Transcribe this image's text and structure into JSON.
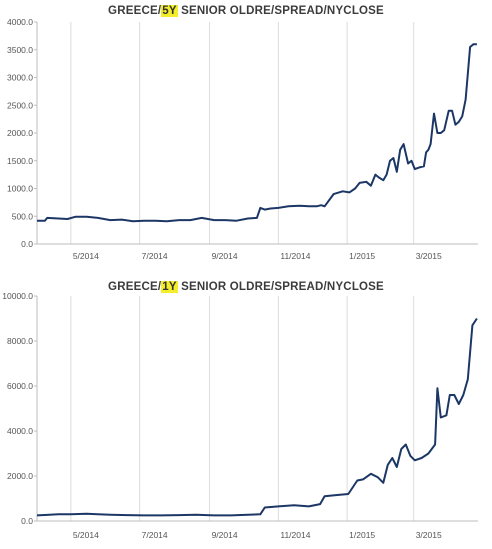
{
  "chart_data": [
    {
      "type": "line",
      "title": {
        "pre": "GREECE/",
        "highlight": "5Y",
        "post": " SENIOR OLDRE/SPREAD/NYCLOSE"
      },
      "x_tick_labels": [
        "5/2014",
        "7/2014",
        "9/2014",
        "11/2014",
        "1/2015",
        "3/2015"
      ],
      "y_ticks": [
        0,
        500,
        1000,
        1500,
        2000,
        2500,
        3000,
        3500,
        4000
      ],
      "y_tick_labels": [
        "0.0",
        "500.0",
        "1000.0",
        "1500.0",
        "2000.0",
        "2500.0",
        "3000.0",
        "3500.0",
        "4000.0"
      ],
      "ylim": [
        0,
        4000
      ],
      "grid": "vertical",
      "line_color": "#1c3766",
      "series": [
        {
          "x": [
            "2014-04-01",
            "2014-04-08",
            "2014-04-10",
            "2014-04-20",
            "2014-04-28",
            "2014-05-05",
            "2014-05-15",
            "2014-05-25",
            "2014-06-05",
            "2014-06-15",
            "2014-06-25",
            "2014-07-05",
            "2014-07-15",
            "2014-07-25",
            "2014-08-05",
            "2014-08-15",
            "2014-08-25",
            "2014-09-05",
            "2014-09-15",
            "2014-09-25",
            "2014-10-05",
            "2014-10-13",
            "2014-10-16",
            "2014-10-20",
            "2014-10-25",
            "2014-11-01",
            "2014-11-10",
            "2014-11-20",
            "2014-11-28",
            "2014-12-05",
            "2014-12-09",
            "2014-12-12",
            "2014-12-20",
            "2014-12-28",
            "2015-01-03",
            "2015-01-08",
            "2015-01-12",
            "2015-01-18",
            "2015-01-22",
            "2015-01-26",
            "2015-01-29",
            "2015-02-02",
            "2015-02-05",
            "2015-02-08",
            "2015-02-11",
            "2015-02-14",
            "2015-02-17",
            "2015-02-20",
            "2015-02-24",
            "2015-02-27",
            "2015-03-02",
            "2015-03-06",
            "2015-03-10",
            "2015-03-12",
            "2015-03-14",
            "2015-03-16",
            "2015-03-19",
            "2015-03-22",
            "2015-03-25",
            "2015-03-28",
            "2015-04-01",
            "2015-04-04",
            "2015-04-07",
            "2015-04-10",
            "2015-04-13",
            "2015-04-16",
            "2015-04-20",
            "2015-04-23",
            "2015-04-26"
          ],
          "y": [
            420,
            420,
            470,
            460,
            450,
            490,
            490,
            470,
            430,
            440,
            410,
            420,
            420,
            410,
            430,
            430,
            470,
            430,
            430,
            420,
            460,
            470,
            650,
            620,
            640,
            650,
            680,
            690,
            680,
            680,
            700,
            680,
            900,
            950,
            930,
            1000,
            1100,
            1120,
            1050,
            1250,
            1200,
            1150,
            1250,
            1500,
            1550,
            1300,
            1700,
            1800,
            1450,
            1500,
            1350,
            1380,
            1400,
            1650,
            1700,
            1800,
            2350,
            2000,
            2000,
            2050,
            2400,
            2400,
            2150,
            2200,
            2300,
            2600,
            3550,
            3600,
            3600
          ]
        }
      ]
    },
    {
      "type": "line",
      "title": {
        "pre": "GREECE/",
        "highlight": "1Y",
        "post": " SENIOR OLDRE/SPREAD/NYCLOSE"
      },
      "x_tick_labels": [
        "5/2014",
        "7/2014",
        "9/2014",
        "11/2014",
        "1/2015",
        "3/2015"
      ],
      "y_ticks": [
        0,
        2000,
        4000,
        6000,
        8000,
        10000
      ],
      "y_tick_labels": [
        "0.0",
        "2000.0",
        "4000.0",
        "6000.0",
        "8000.0",
        "10000.0"
      ],
      "ylim": [
        0,
        10000
      ],
      "grid": "vertical",
      "line_color": "#1c3766",
      "series": [
        {
          "x": [
            "2014-04-01",
            "2014-04-10",
            "2014-04-20",
            "2014-05-01",
            "2014-05-15",
            "2014-05-25",
            "2014-06-05",
            "2014-06-20",
            "2014-07-05",
            "2014-07-20",
            "2014-08-05",
            "2014-08-20",
            "2014-09-05",
            "2014-09-20",
            "2014-10-05",
            "2014-10-16",
            "2014-10-20",
            "2014-11-01",
            "2014-11-15",
            "2014-11-28",
            "2014-12-08",
            "2014-12-12",
            "2014-12-22",
            "2015-01-02",
            "2015-01-10",
            "2015-01-15",
            "2015-01-22",
            "2015-01-28",
            "2015-02-02",
            "2015-02-06",
            "2015-02-10",
            "2015-02-14",
            "2015-02-18",
            "2015-02-22",
            "2015-02-26",
            "2015-03-02",
            "2015-03-08",
            "2015-03-14",
            "2015-03-20",
            "2015-03-22",
            "2015-03-25",
            "2015-03-30",
            "2015-04-02",
            "2015-04-06",
            "2015-04-10",
            "2015-04-14",
            "2015-04-18",
            "2015-04-22",
            "2015-04-26"
          ],
          "y": [
            250,
            270,
            300,
            300,
            320,
            300,
            280,
            260,
            250,
            250,
            260,
            280,
            250,
            250,
            280,
            300,
            600,
            650,
            700,
            650,
            750,
            1100,
            1150,
            1200,
            1800,
            1850,
            2100,
            1950,
            1700,
            2500,
            2800,
            2400,
            3200,
            3400,
            2900,
            2700,
            2800,
            3000,
            3400,
            5900,
            4600,
            4700,
            5600,
            5600,
            5200,
            5600,
            6300,
            8700,
            9000
          ]
        }
      ]
    }
  ]
}
